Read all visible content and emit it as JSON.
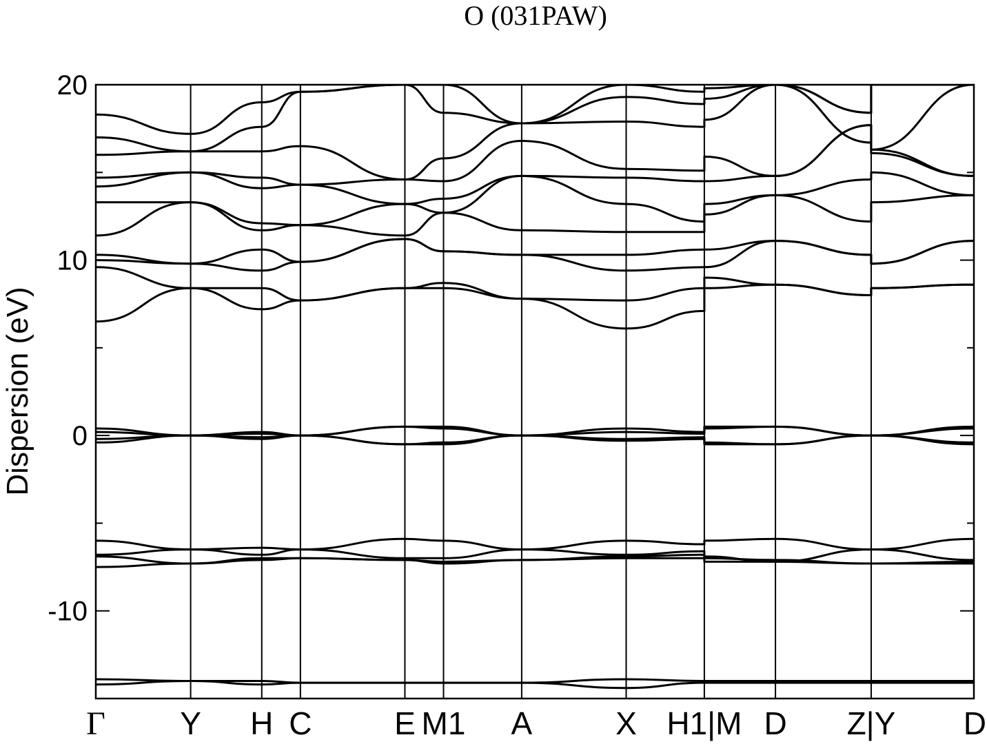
{
  "chart_data": {
    "type": "line",
    "title": "O (031PAW)",
    "ylabel": "Dispersion (eV)",
    "xlabel": "",
    "ylim": [
      -15,
      20
    ],
    "y_ticks": [
      -10,
      0,
      10,
      20
    ],
    "y_tick_labels": [
      "-10",
      "0",
      "10",
      "20"
    ],
    "grid": false,
    "legend": "none",
    "kpoints": [
      {
        "label": "Γ",
        "x": 0.0
      },
      {
        "label": "Y",
        "x": 0.108
      },
      {
        "label": "H",
        "x": 0.189
      },
      {
        "label": "C",
        "x": 0.233
      },
      {
        "label": "E",
        "x": 0.352
      },
      {
        "label": "M1",
        "x": 0.396
      },
      {
        "label": "A",
        "x": 0.485
      },
      {
        "label": "X",
        "x": 0.604
      },
      {
        "label": "H1|M",
        "x": 0.693
      },
      {
        "label": "D",
        "x": 0.774
      },
      {
        "label": "Z|Y",
        "x": 0.883
      },
      {
        "label": "D",
        "x": 1.0
      }
    ],
    "kpoint_label_text": [
      "Γ",
      "Y",
      "H",
      "C",
      "E",
      "M1",
      "A",
      "X",
      "H1|M",
      "D",
      "Z|Y",
      "D"
    ],
    "line_color": "#000000",
    "bands": [
      {
        "name": "",
        "x": [
          0,
          0.108,
          0.189,
          0.233,
          0.352,
          0.396,
          0.485,
          0.604,
          0.693,
          0.693,
          0.774,
          0.883,
          0.883,
          1.0
        ],
        "y": [
          -13.9,
          -14.0,
          -14.0,
          -14.1,
          -14.1,
          -14.1,
          -14.1,
          -13.9,
          -14.0,
          -14.0,
          -14.0,
          -14.0,
          -14.0,
          -14.0
        ]
      },
      {
        "name": "",
        "x": [
          0,
          0.108,
          0.189,
          0.233,
          0.352,
          0.396,
          0.485,
          0.604,
          0.693,
          0.693,
          0.774,
          0.883,
          0.883,
          1.0
        ],
        "y": [
          -14.2,
          -14.0,
          -14.2,
          -14.1,
          -14.1,
          -14.1,
          -14.1,
          -14.4,
          -14.1,
          -14.1,
          -14.1,
          -14.1,
          -14.1,
          -14.1
        ]
      },
      {
        "name": "",
        "x": [
          0,
          0.108,
          0.189,
          0.233,
          0.352,
          0.396,
          0.485,
          0.604,
          0.693,
          0.693,
          0.774,
          0.883,
          0.883,
          1.0
        ],
        "y": [
          -7.5,
          -7.3,
          -7.1,
          -7.0,
          -7.1,
          -7.3,
          -7.1,
          -7.0,
          -7.0,
          -7.2,
          -7.2,
          -7.3,
          -7.3,
          -7.3
        ]
      },
      {
        "name": "",
        "x": [
          0,
          0.108,
          0.189,
          0.233,
          0.352,
          0.396,
          0.485,
          0.604,
          0.693,
          0.693,
          0.774,
          0.883,
          0.883,
          1.0
        ],
        "y": [
          -6.9,
          -7.3,
          -7.0,
          -7.0,
          -7.1,
          -7.2,
          -7.1,
          -6.9,
          -6.8,
          -7.0,
          -7.1,
          -7.3,
          -7.3,
          -7.2
        ]
      },
      {
        "name": "",
        "x": [
          0,
          0.108,
          0.189,
          0.233,
          0.352,
          0.396,
          0.485,
          0.604,
          0.693,
          0.693,
          0.774,
          0.883,
          0.883,
          1.0
        ],
        "y": [
          -6.8,
          -6.5,
          -6.8,
          -6.5,
          -7.0,
          -7.0,
          -6.5,
          -6.8,
          -6.6,
          -6.9,
          -7.2,
          -6.5,
          -6.5,
          -7.1
        ]
      },
      {
        "name": "",
        "x": [
          0,
          0.108,
          0.189,
          0.233,
          0.352,
          0.396,
          0.485,
          0.604,
          0.693,
          0.693,
          0.774,
          0.883,
          0.883,
          1.0
        ],
        "y": [
          -6.0,
          -6.5,
          -6.4,
          -6.5,
          -5.9,
          -6.0,
          -6.5,
          -6.0,
          -6.2,
          -6.0,
          -5.9,
          -6.5,
          -6.5,
          -5.9
        ]
      },
      {
        "name": "",
        "x": [
          0,
          0.108,
          0.189,
          0.233,
          0.352,
          0.396,
          0.485,
          0.604,
          0.693,
          0.693,
          0.774,
          0.883,
          0.883,
          1.0
        ],
        "y": [
          -0.4,
          0.0,
          -0.2,
          0.0,
          -0.5,
          -0.5,
          0.0,
          -0.3,
          -0.2,
          -0.5,
          -0.5,
          0.0,
          0.0,
          -0.5
        ]
      },
      {
        "name": "",
        "x": [
          0,
          0.108,
          0.189,
          0.233,
          0.352,
          0.396,
          0.485,
          0.604,
          0.693,
          0.693,
          0.774,
          0.883,
          0.883,
          1.0
        ],
        "y": [
          -0.2,
          0.0,
          0.1,
          0.0,
          -0.5,
          -0.4,
          0.0,
          -0.2,
          -0.1,
          -0.4,
          -0.5,
          0.0,
          0.0,
          -0.4
        ]
      },
      {
        "name": "",
        "x": [
          0,
          0.108,
          0.189,
          0.233,
          0.352,
          0.396,
          0.485,
          0.604,
          0.693,
          0.693,
          0.774,
          0.883,
          0.883,
          1.0
        ],
        "y": [
          0.2,
          0.0,
          -0.1,
          0.0,
          0.5,
          0.4,
          0.0,
          0.2,
          0.1,
          0.4,
          0.5,
          0.0,
          0.0,
          0.4
        ]
      },
      {
        "name": "",
        "x": [
          0,
          0.108,
          0.189,
          0.233,
          0.352,
          0.396,
          0.485,
          0.604,
          0.693,
          0.693,
          0.774,
          0.883,
          0.883,
          1.0
        ],
        "y": [
          0.4,
          0.0,
          0.2,
          0.0,
          0.5,
          0.5,
          0.0,
          0.4,
          0.2,
          0.5,
          0.5,
          0.0,
          0.0,
          0.5
        ]
      },
      {
        "name": "",
        "x": [
          0,
          0.108,
          0.189,
          0.233,
          0.352,
          0.396,
          0.485,
          0.604,
          0.693,
          0.693,
          0.774,
          0.883,
          0.883,
          1.0
        ],
        "y": [
          6.5,
          8.4,
          7.2,
          7.7,
          8.4,
          8.4,
          7.8,
          6.1,
          7.1,
          8.4,
          8.6,
          8.0,
          8.4,
          8.6
        ]
      },
      {
        "name": "",
        "x": [
          0,
          0.108,
          0.189,
          0.233,
          0.352,
          0.396,
          0.485,
          0.604,
          0.693,
          0.693,
          0.774,
          0.883,
          0.883,
          1.0
        ],
        "y": [
          9.6,
          8.4,
          8.4,
          7.7,
          8.4,
          8.7,
          7.8,
          7.7,
          8.4,
          9.0,
          8.6,
          8.0,
          8.4,
          8.6
        ]
      },
      {
        "name": "",
        "x": [
          0,
          0.108,
          0.189,
          0.233,
          0.352,
          0.396,
          0.485,
          0.604,
          0.693,
          0.693,
          0.774,
          0.883,
          0.883,
          1.0
        ],
        "y": [
          10.0,
          9.8,
          9.4,
          9.9,
          11.2,
          10.5,
          10.3,
          9.4,
          9.6,
          9.6,
          11.1,
          10.3,
          9.8,
          11.1
        ]
      },
      {
        "name": "",
        "x": [
          0,
          0.108,
          0.189,
          0.233,
          0.352,
          0.396,
          0.485,
          0.604,
          0.693,
          0.693,
          0.774,
          0.883,
          0.883,
          1.0
        ],
        "y": [
          10.3,
          9.8,
          10.6,
          9.9,
          11.2,
          10.5,
          10.3,
          10.3,
          10.6,
          10.6,
          11.1,
          10.3,
          9.8,
          11.1
        ]
      },
      {
        "name": "",
        "x": [
          0,
          0.108,
          0.189,
          0.233,
          0.352,
          0.396,
          0.485,
          0.604,
          0.693,
          0.693,
          0.774,
          0.883,
          0.883,
          1.0
        ],
        "y": [
          11.4,
          13.3,
          11.7,
          12.0,
          11.4,
          12.7,
          11.7,
          11.6,
          11.6,
          12.6,
          13.7,
          12.2,
          13.3,
          13.7
        ]
      },
      {
        "name": "",
        "x": [
          0,
          0.108,
          0.189,
          0.233,
          0.352,
          0.396,
          0.485,
          0.604,
          0.693,
          0.693,
          0.774,
          0.883,
          0.883,
          1.0
        ],
        "y": [
          13.3,
          13.3,
          12.1,
          12.0,
          13.2,
          12.7,
          14.8,
          13.2,
          12.2,
          13.2,
          13.7,
          14.6,
          15.0,
          13.7
        ]
      },
      {
        "name": "",
        "x": [
          0,
          0.108,
          0.189,
          0.233,
          0.352,
          0.396,
          0.485,
          0.604,
          0.693,
          0.693,
          0.774,
          0.883,
          0.883,
          1.0
        ],
        "y": [
          14.2,
          15.0,
          14.1,
          14.3,
          13.2,
          13.5,
          14.8,
          14.7,
          14.5,
          14.5,
          14.8,
          17.7,
          16.1,
          14.8
        ]
      },
      {
        "name": "",
        "x": [
          0,
          0.108,
          0.189,
          0.233,
          0.352,
          0.396,
          0.485,
          0.604,
          0.693,
          0.693,
          0.774,
          0.883,
          0.883,
          1.0
        ],
        "y": [
          14.7,
          15.0,
          14.7,
          14.3,
          14.6,
          14.5,
          16.8,
          15.2,
          15.1,
          15.9,
          14.8,
          17.7,
          16.3,
          14.8
        ]
      },
      {
        "name": "",
        "x": [
          0,
          0.108,
          0.189,
          0.233,
          0.352,
          0.396,
          0.485,
          0.604,
          0.693,
          0.693,
          0.774,
          0.883,
          0.883,
          1.0
        ],
        "y": [
          16.0,
          16.2,
          16.2,
          16.5,
          14.6,
          15.8,
          17.8,
          17.9,
          17.6,
          18.0,
          20.0,
          16.7,
          16.3,
          20.0
        ]
      },
      {
        "name": "",
        "x": [
          0,
          0.108,
          0.189,
          0.233,
          0.352,
          0.396,
          0.485,
          0.604,
          0.693,
          0.693,
          0.774,
          0.883,
          0.883,
          1.0
        ],
        "y": [
          17.0,
          16.2,
          17.6,
          19.6,
          20.0,
          18.4,
          17.8,
          19.3,
          18.9,
          19.2,
          20.0,
          18.4,
          20.0,
          20.0
        ]
      },
      {
        "name": "",
        "x": [
          0,
          0.108,
          0.189,
          0.233,
          0.352,
          0.396,
          0.485,
          0.604,
          0.693,
          0.693,
          0.774,
          0.883,
          0.883,
          1.0
        ],
        "y": [
          18.3,
          17.2,
          19.0,
          19.6,
          20.0,
          20.0,
          17.8,
          20.0,
          19.6,
          19.8,
          20.0,
          18.4,
          20.0,
          20.0
        ]
      }
    ]
  }
}
